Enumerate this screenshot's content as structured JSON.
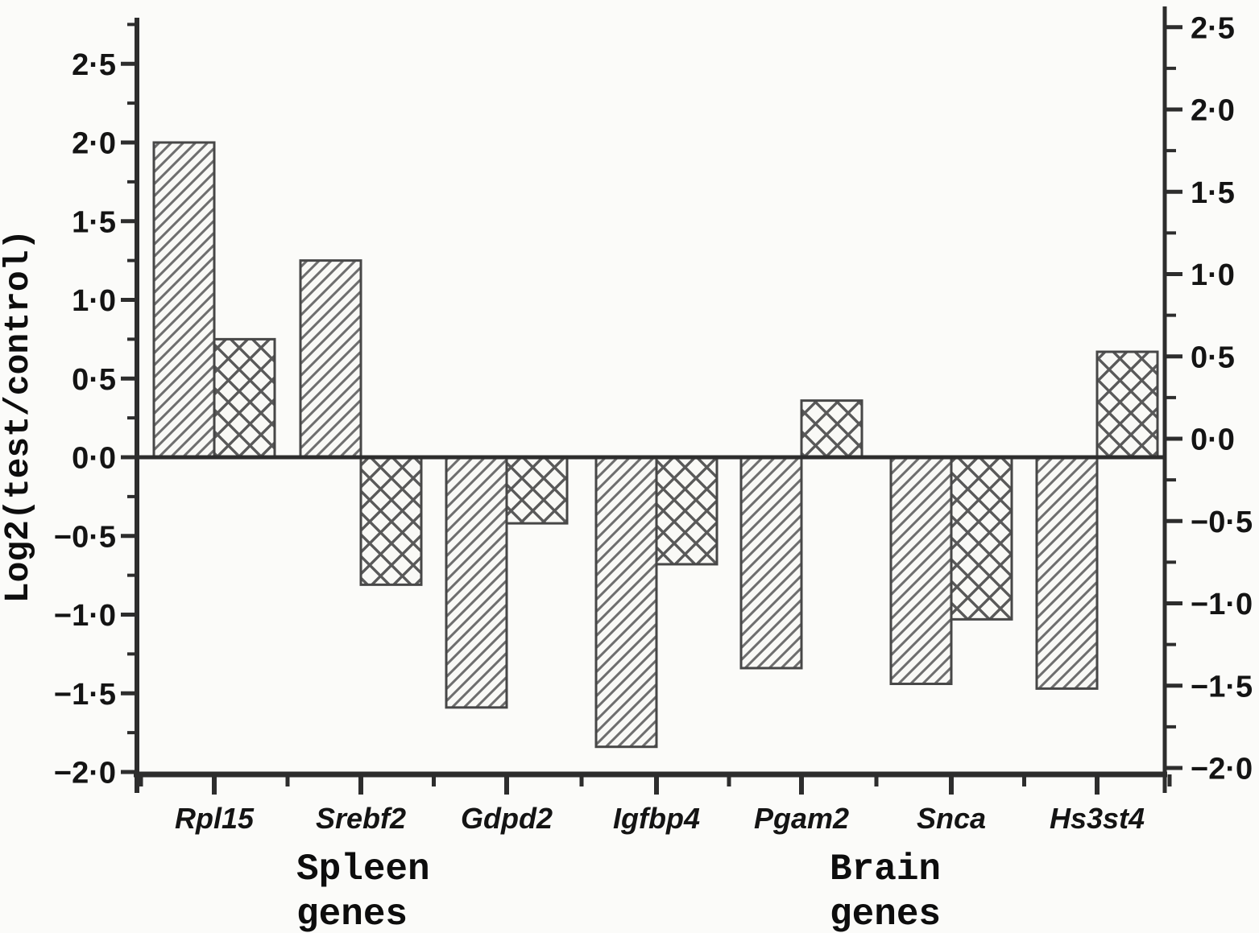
{
  "figure": {
    "background": "#fbfbf9",
    "axis_color": "#2d2d2d",
    "bar_outline": "#474747",
    "bar_fill": "#f9f9f6",
    "hatch_color": "#6e6e6e",
    "crosshatch_color": "#595959",
    "text_color": "#141414"
  },
  "chart_data": {
    "type": "bar",
    "title": "",
    "xlabel": "",
    "ylabel": "Log2(test/control)",
    "grid": false,
    "legend": "none",
    "categories": [
      "Rpl15",
      "Srebf2",
      "Gdpd2",
      "Igfbp4",
      "Pgam2",
      "Snca",
      "Hs3st4"
    ],
    "series": [
      {
        "name": "diagonal-hatch",
        "pattern": "diagonal",
        "values": [
          2.0,
          1.25,
          -1.59,
          -1.84,
          -1.34,
          -1.44,
          -1.47
        ]
      },
      {
        "name": "cross-hatch",
        "pattern": "crosshatch",
        "values": [
          0.75,
          -0.81,
          -0.42,
          -0.68,
          0.36,
          -1.03,
          0.67
        ]
      }
    ],
    "groups": [
      {
        "label_lines": [
          "Spleen",
          "genes"
        ],
        "categories": [
          "Rpl15",
          "Srebf2",
          "Gdpd2",
          "Igfbp4"
        ]
      },
      {
        "label_lines": [
          "Brain",
          "genes"
        ],
        "categories": [
          "Pgam2",
          "Snca",
          "Hs3st4"
        ]
      }
    ],
    "left_axis": {
      "tick_labels": [
        "2·5",
        "2·0",
        "1·5",
        "1·0",
        "0·5",
        "0·0",
        "−0·5",
        "−1·0",
        "−1·5",
        "−2·0"
      ],
      "tick_values": [
        2.5,
        2.0,
        1.5,
        1.0,
        0.5,
        0.0,
        -0.5,
        -1.0,
        -1.5,
        -2.0
      ],
      "range": [
        -2.0,
        2.75
      ],
      "minor_step": 0.25
    },
    "right_axis": {
      "tick_labels": [
        "2·5",
        "2·0",
        "1·5",
        "1·0",
        "0·5",
        "0·0",
        "−0·5",
        "−1·0",
        "−1·5",
        "−2·0"
      ],
      "tick_values": [
        2.5,
        2.0,
        1.5,
        1.0,
        0.5,
        0.0,
        -0.5,
        -1.0,
        -1.5,
        -2.0
      ],
      "range": [
        -2.0,
        2.6
      ],
      "minor_step": 0.25
    }
  }
}
